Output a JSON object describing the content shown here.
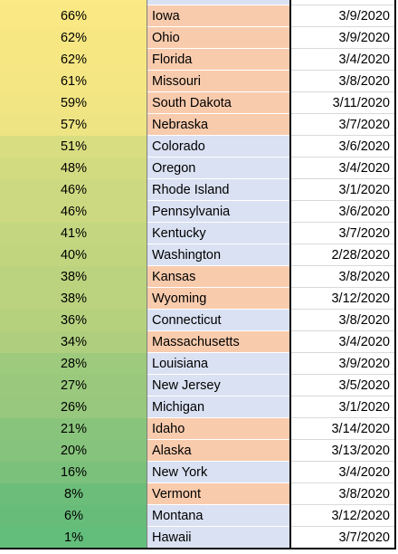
{
  "table": {
    "rows": [
      {
        "pct": "66%",
        "state": "Iowa",
        "date": "3/9/2020",
        "pct_color": "#f9e883",
        "state_color": "#f8cbad"
      },
      {
        "pct": "62%",
        "state": "Ohio",
        "date": "3/9/2020",
        "pct_color": "#f6e783",
        "state_color": "#f8cbad"
      },
      {
        "pct": "62%",
        "state": "Florida",
        "date": "3/4/2020",
        "pct_color": "#f6e783",
        "state_color": "#f8cbad"
      },
      {
        "pct": "61%",
        "state": "Missouri",
        "date": "3/8/2020",
        "pct_color": "#f4e683",
        "state_color": "#f8cbad"
      },
      {
        "pct": "59%",
        "state": "South Dakota",
        "date": "3/11/2020",
        "pct_color": "#f1e583",
        "state_color": "#f8cbad"
      },
      {
        "pct": "57%",
        "state": "Nebraska",
        "date": "3/7/2020",
        "pct_color": "#eee483",
        "state_color": "#f8cbad"
      },
      {
        "pct": "51%",
        "state": "Colorado",
        "date": "3/6/2020",
        "pct_color": "#d9dd81",
        "state_color": "#d9e1f2"
      },
      {
        "pct": "48%",
        "state": "Oregon",
        "date": "3/4/2020",
        "pct_color": "#d3db81",
        "state_color": "#d9e1f2"
      },
      {
        "pct": "46%",
        "state": "Rhode Island",
        "date": "3/1/2020",
        "pct_color": "#cdd980",
        "state_color": "#d9e1f2"
      },
      {
        "pct": "46%",
        "state": "Pennsylvania",
        "date": "3/6/2020",
        "pct_color": "#cdd980",
        "state_color": "#d9e1f2"
      },
      {
        "pct": "41%",
        "state": "Kentucky",
        "date": "3/7/2020",
        "pct_color": "#c4d680",
        "state_color": "#d9e1f2"
      },
      {
        "pct": "40%",
        "state": "Washington",
        "date": "2/28/2020",
        "pct_color": "#c1d57f",
        "state_color": "#d9e1f2"
      },
      {
        "pct": "38%",
        "state": "Kansas",
        "date": "3/8/2020",
        "pct_color": "#bbd37f",
        "state_color": "#f8cbad"
      },
      {
        "pct": "38%",
        "state": "Wyoming",
        "date": "3/12/2020",
        "pct_color": "#bbd37f",
        "state_color": "#f8cbad"
      },
      {
        "pct": "36%",
        "state": "Connecticut",
        "date": "3/8/2020",
        "pct_color": "#b5d17e",
        "state_color": "#d9e1f2"
      },
      {
        "pct": "34%",
        "state": "Massachusetts",
        "date": "3/4/2020",
        "pct_color": "#afcf7e",
        "state_color": "#f8cbad"
      },
      {
        "pct": "28%",
        "state": "Louisiana",
        "date": "3/9/2020",
        "pct_color": "#9dca7d",
        "state_color": "#d9e1f2"
      },
      {
        "pct": "27%",
        "state": "New Jersey",
        "date": "3/5/2020",
        "pct_color": "#9ac97d",
        "state_color": "#d9e1f2"
      },
      {
        "pct": "26%",
        "state": "Michigan",
        "date": "3/1/2020",
        "pct_color": "#97c87d",
        "state_color": "#d9e1f2"
      },
      {
        "pct": "21%",
        "state": "Idaho",
        "date": "3/14/2020",
        "pct_color": "#89c47c",
        "state_color": "#f8cbad"
      },
      {
        "pct": "20%",
        "state": "Alaska",
        "date": "3/13/2020",
        "pct_color": "#86c37c",
        "state_color": "#f8cbad"
      },
      {
        "pct": "16%",
        "state": "New York",
        "date": "3/4/2020",
        "pct_color": "#7bc07b",
        "state_color": "#d9e1f2"
      },
      {
        "pct": "8%",
        "state": "Vermont",
        "date": "3/8/2020",
        "pct_color": "#6cbd7a",
        "state_color": "#f8cbad"
      },
      {
        "pct": "6%",
        "state": "Montana",
        "date": "3/12/2020",
        "pct_color": "#68bc7a",
        "state_color": "#d9e1f2"
      },
      {
        "pct": "1%",
        "state": "Hawaii",
        "date": "3/7/2020",
        "pct_color": "#63be7b",
        "state_color": "#d9e1f2"
      }
    ]
  }
}
